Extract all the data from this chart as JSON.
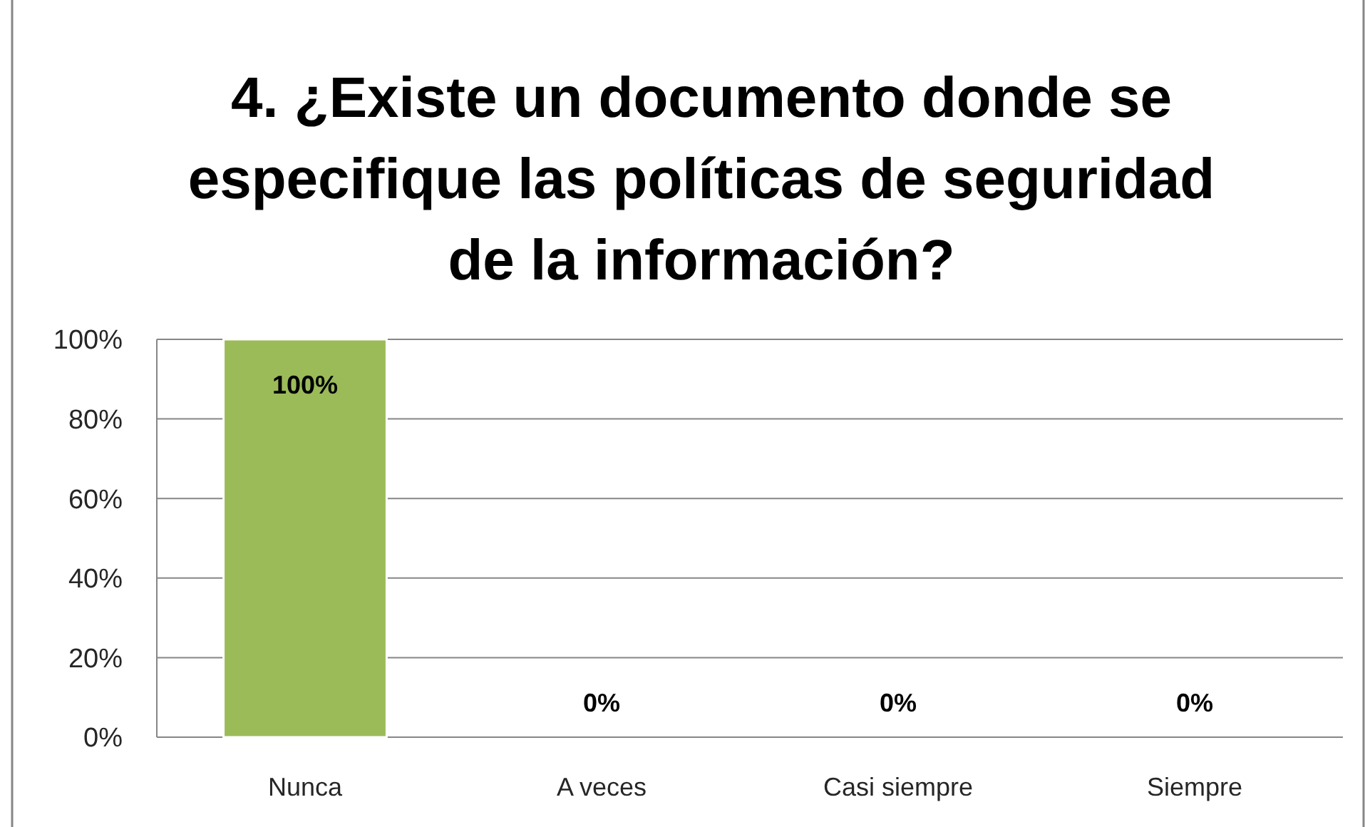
{
  "chart_data": {
    "type": "bar",
    "title": "4. ¿Existe un documento donde se especifique las políticas de seguridad de la información?",
    "categories": [
      "Nunca",
      "A veces",
      "Casi siempre",
      "Siempre"
    ],
    "values": [
      100,
      0,
      0,
      0
    ],
    "color": "#9bbb59",
    "ylim": [
      0,
      100
    ],
    "yticks": [
      {
        "value": 0,
        "label": "0%"
      },
      {
        "value": 20,
        "label": "20%"
      },
      {
        "value": 40,
        "label": "40%"
      },
      {
        "value": 60,
        "label": "60%"
      },
      {
        "value": 80,
        "label": "80%"
      },
      {
        "value": 100,
        "label": "100%"
      }
    ],
    "grid": "y",
    "value_labels": [
      "100%",
      "0%",
      "0%",
      "0%"
    ]
  }
}
